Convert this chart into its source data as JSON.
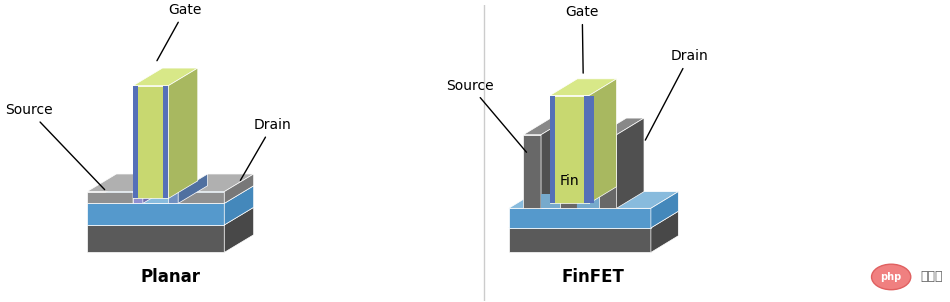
{
  "bg_color": "#ffffff",
  "title_planar": "Planar",
  "title_finfet": "FinFET",
  "label_gate": "Gate",
  "label_source": "Source",
  "label_drain": "Drain",
  "label_fin": "Fin",
  "colors": {
    "dark_gray": "#606060",
    "medium_gray": "#808080",
    "light_gray": "#a0a0a0",
    "dark_blue": "#4a7fb5",
    "light_blue": "#6ab0e0",
    "sky_blue": "#87ceeb",
    "gate_green": "#c8d878",
    "gate_dielectric_blue": "#6080c0",
    "gate_oxide_purple": "#b090c0",
    "fin_gray": "#707070",
    "substrate_dark": "#505050",
    "substrate_mid": "#6a6a6a"
  },
  "php_logo_color": "#f08080",
  "watermark_text": "php 中文网"
}
